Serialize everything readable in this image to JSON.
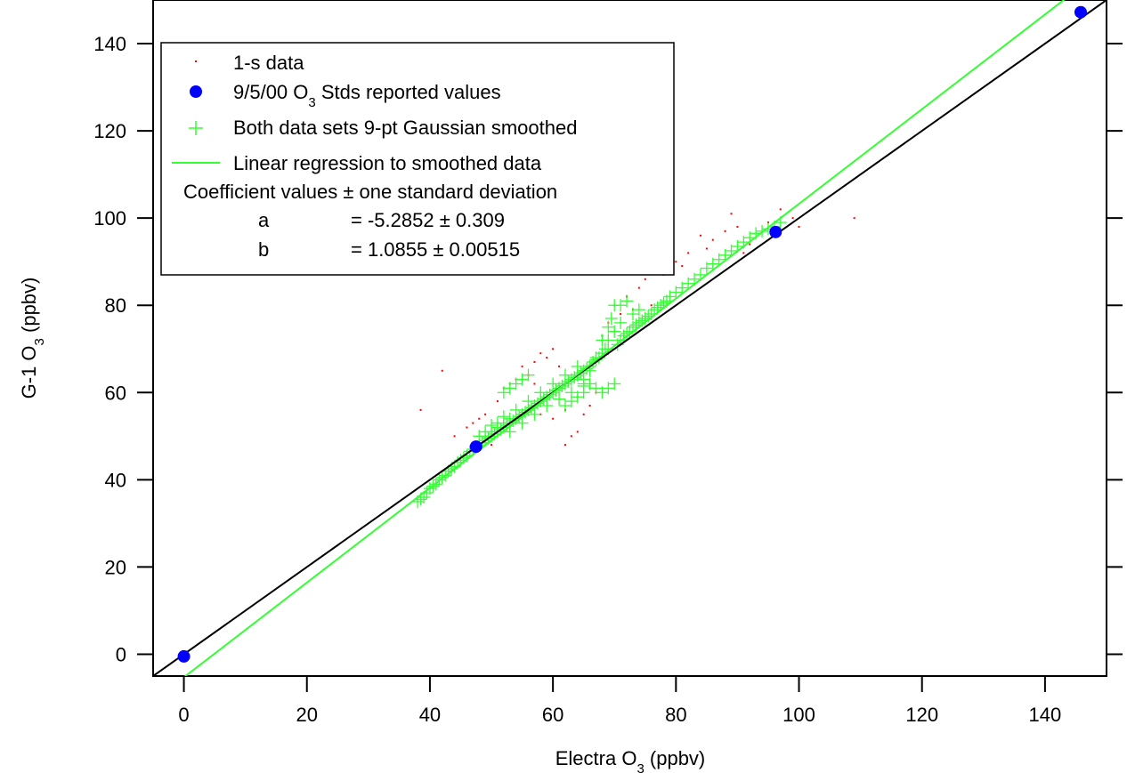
{
  "chart_data": {
    "type": "scatter",
    "xlabel": {
      "main": "Electra O",
      "sub": "3",
      "tail": " (ppbv)"
    },
    "ylabel": {
      "main": "G-1 O",
      "sub": "3",
      "tail": " (ppbv)"
    },
    "xlim": [
      -5,
      150
    ],
    "ylim": [
      -5,
      150
    ],
    "x_ticks": [
      0,
      20,
      40,
      60,
      80,
      100,
      120,
      140
    ],
    "y_ticks": [
      0,
      20,
      40,
      60,
      80,
      100,
      120,
      140
    ],
    "grid": false,
    "legend_position": "top-left",
    "legend": {
      "items": [
        {
          "key": "raw",
          "label": "1-s data",
          "marker": "dot",
          "color": "#ff0000"
        },
        {
          "key": "stds",
          "label_main": "9/5/00 O",
          "label_sub": "3",
          "label_tail": " Stds reported values",
          "marker": "circle",
          "color": "#0000ff"
        },
        {
          "key": "smoothed",
          "label": "Both data sets 9-pt Gaussian smoothed",
          "marker": "plus",
          "color": "#33ff33"
        },
        {
          "key": "fit",
          "label": "Linear regression to smoothed data",
          "marker": "line",
          "color": "#33ff33"
        }
      ],
      "coef_header": "Coefficient values ± one standard deviation",
      "coefficients": [
        {
          "name": "a",
          "value": "= -5.2852 ± 0.309"
        },
        {
          "name": "b",
          "value": "= 1.0855 ± 0.00515"
        }
      ]
    },
    "fit": {
      "a": -5.2852,
      "b": 1.0855,
      "color": "#33ff33"
    },
    "identity_line": {
      "slope": 1,
      "intercept": 0,
      "color": "#000000"
    },
    "series": [
      {
        "name": "9/5/00 O3 Stds reported values",
        "marker": "circle",
        "color": "#0000ff",
        "x": [
          0,
          47.5,
          96.2,
          145.8
        ],
        "y": [
          -0.5,
          47.6,
          96.8,
          147.2
        ]
      },
      {
        "name": "Both data sets 9-pt Gaussian smoothed",
        "marker": "plus",
        "color": "#33ff33",
        "x": [
          38,
          38.5,
          39,
          39.5,
          40,
          40.5,
          41,
          41.5,
          42,
          42.5,
          43,
          43.5,
          44,
          44.5,
          45,
          45.5,
          46,
          46.5,
          47,
          47.5,
          48,
          48,
          48.5,
          49,
          49,
          49.5,
          50,
          50,
          50.5,
          51,
          51,
          51.5,
          52,
          52,
          52.5,
          53,
          53,
          53.5,
          54,
          54,
          54.5,
          55,
          55,
          55.5,
          56,
          56,
          56.5,
          57,
          57,
          57.5,
          58,
          58,
          58.5,
          59,
          59,
          59.5,
          60,
          60,
          60.5,
          61,
          61,
          61.5,
          62,
          62,
          62.5,
          63,
          63,
          63.5,
          64,
          64,
          64.5,
          65,
          65,
          65.5,
          66,
          66.5,
          67,
          67.5,
          68,
          68.5,
          69,
          69,
          69.5,
          70,
          70,
          70.5,
          71,
          71,
          71.5,
          72,
          72.5,
          73,
          73.5,
          74,
          74.5,
          75,
          75.5,
          76,
          76.5,
          77,
          77.5,
          78,
          78.5,
          79,
          80,
          81,
          82,
          83,
          84,
          85,
          86,
          87,
          88,
          89,
          90,
          91,
          92,
          93,
          94,
          95,
          96,
          97,
          52,
          53,
          54,
          55,
          56,
          62,
          63,
          64,
          65,
          64,
          65,
          66,
          67,
          68,
          69,
          70,
          69,
          68,
          67,
          66,
          65,
          71,
          72,
          73,
          74,
          75,
          49,
          50,
          51,
          52,
          53
        ],
        "y": [
          35,
          35.5,
          36,
          37,
          38,
          38.5,
          39,
          40,
          40.5,
          41,
          42,
          42.5,
          43,
          44,
          44.5,
          45,
          45.5,
          46.5,
          47,
          47.5,
          48,
          50,
          48.5,
          49,
          51,
          49.5,
          50,
          52.5,
          50.5,
          51,
          53,
          51.5,
          52,
          54.5,
          52.5,
          53,
          51,
          53.5,
          54,
          56,
          54.5,
          55,
          53,
          55.5,
          56,
          58,
          56.5,
          57,
          55,
          57.5,
          58,
          60,
          58.5,
          59,
          57,
          59.5,
          60,
          62,
          60.5,
          61,
          58.5,
          61.5,
          62,
          64,
          62.5,
          63,
          60,
          63.5,
          64,
          66,
          64.5,
          65,
          61.5,
          65.5,
          66,
          67,
          67.5,
          68,
          69,
          70,
          75,
          72,
          77,
          80,
          74,
          71,
          72,
          76,
          73,
          73.5,
          74,
          75,
          75.5,
          76,
          76.5,
          77,
          77.5,
          78,
          79,
          79.5,
          80,
          80.5,
          81,
          82,
          83,
          84,
          85,
          86,
          87,
          88.5,
          89.5,
          90.5,
          91.5,
          92.5,
          93.5,
          94.5,
          95.5,
          96.5,
          97,
          97.5,
          98,
          99,
          60,
          61,
          62,
          63,
          64,
          57,
          58,
          59,
          60,
          64,
          63,
          62,
          61,
          60,
          61,
          62,
          70,
          72,
          68,
          65,
          62,
          80,
          81,
          78,
          79,
          77,
          50,
          51,
          52,
          53,
          54
        ]
      },
      {
        "name": "1-s data",
        "marker": "dot",
        "color": "#ff0000",
        "x": [
          38.5,
          42,
          44,
          46,
          48,
          50,
          52,
          54,
          55,
          57,
          58,
          60,
          62,
          63,
          64,
          65,
          66,
          67,
          68,
          69,
          70,
          71,
          72,
          74,
          75,
          76,
          78,
          80,
          82,
          84,
          86,
          88,
          89,
          90,
          91,
          92,
          95,
          97,
          99,
          100,
          109,
          51,
          49,
          47,
          53,
          56,
          59,
          61,
          64,
          66,
          68,
          70,
          73,
          77,
          81,
          85,
          62,
          60,
          58,
          57
        ],
        "y": [
          56,
          65,
          50,
          52,
          54,
          48,
          61,
          63,
          66,
          67,
          69,
          70,
          48,
          50,
          51,
          55,
          57,
          60,
          72,
          76,
          80,
          78,
          82,
          84,
          86,
          80,
          87,
          90,
          92,
          96,
          95,
          97,
          101,
          98,
          92,
          94,
          99,
          102,
          100,
          98,
          100,
          58,
          55,
          53,
          62,
          64,
          68,
          66,
          59,
          61,
          73,
          74,
          79,
          88,
          89,
          93,
          56,
          54,
          55,
          62
        ]
      }
    ]
  }
}
